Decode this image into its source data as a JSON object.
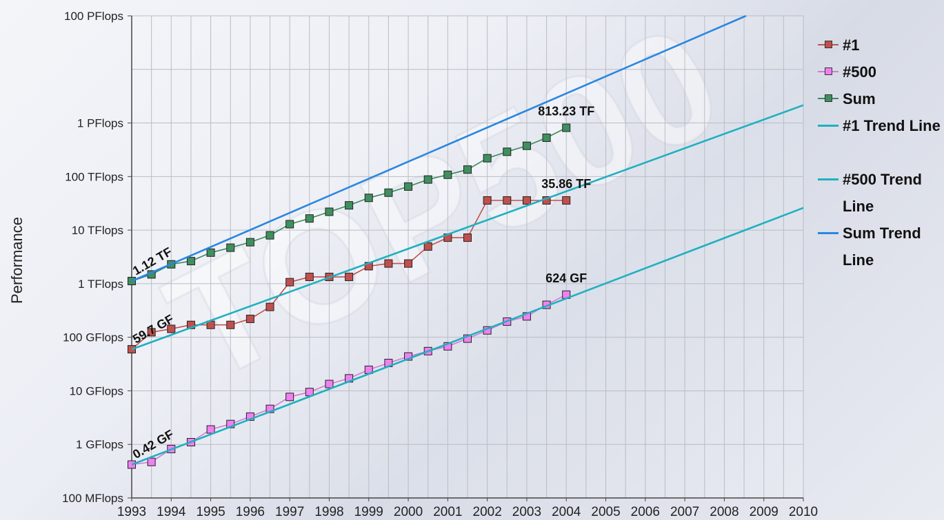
{
  "chart_data": {
    "type": "line",
    "ylabel": "Performance",
    "y_scale": "log",
    "y_ticks": [
      {
        "value": 0.1,
        "label": "100 MFlops"
      },
      {
        "value": 1,
        "label": "1 GFlops"
      },
      {
        "value": 10,
        "label": "10 GFlops"
      },
      {
        "value": 100,
        "label": "100 GFlops"
      },
      {
        "value": 1000,
        "label": "1 TFlops"
      },
      {
        "value": 10000,
        "label": "10 TFlops"
      },
      {
        "value": 100000,
        "label": "100 TFlops"
      },
      {
        "value": 1000000,
        "label": "1 PFlops"
      },
      {
        "value": 100000000,
        "label": "100 PFlops"
      }
    ],
    "x_ticks": [
      "1993",
      "1994",
      "1995",
      "1996",
      "1997",
      "1998",
      "1999",
      "2000",
      "2001",
      "2002",
      "2003",
      "2004",
      "2005",
      "2006",
      "2007",
      "2008",
      "2009",
      "2010"
    ],
    "xlim": [
      1993,
      2010
    ],
    "ylim_gflops": [
      0.1,
      100000000
    ],
    "legend_position": "right",
    "series": [
      {
        "name": "#1",
        "color": "#c0504d",
        "marker_fill": "#c0504d",
        "x": [
          1993.0,
          1993.5,
          1994.0,
          1994.5,
          1995.0,
          1995.5,
          1996.0,
          1996.5,
          1997.0,
          1997.5,
          1998.0,
          1998.5,
          1999.0,
          1999.5,
          2000.0,
          2000.5,
          2001.0,
          2001.5,
          2002.0,
          2002.5,
          2003.0,
          2003.5,
          2004.0
        ],
        "y": [
          59.7,
          124,
          143.4,
          170,
          170,
          170,
          220.4,
          368.2,
          1068,
          1338,
          1338,
          1338,
          2121,
          2379,
          2379,
          4938,
          7226,
          7226,
          35860,
          35860,
          35860,
          35860,
          35860
        ]
      },
      {
        "name": "#500",
        "color": "#d27bd2",
        "marker_fill": "#f080f0",
        "x": [
          1993.0,
          1993.5,
          1994.0,
          1994.5,
          1995.0,
          1995.5,
          1996.0,
          1996.5,
          1997.0,
          1997.5,
          1998.0,
          1998.5,
          1999.0,
          1999.5,
          2000.0,
          2000.5,
          2001.0,
          2001.5,
          2002.0,
          2002.5,
          2003.0,
          2003.5,
          2004.0
        ],
        "y": [
          0.42,
          0.47,
          0.82,
          1.1,
          1.9,
          2.4,
          3.3,
          4.6,
          7.7,
          9.5,
          13.4,
          17.1,
          24.7,
          33.1,
          43.8,
          55.1,
          67.8,
          94.3,
          134.3,
          196,
          245.1,
          403.4,
          624
        ]
      },
      {
        "name": "Sum",
        "color": "#3a8a5c",
        "marker_fill": "#3f8f5f",
        "x": [
          1993.0,
          1993.5,
          1994.0,
          1994.5,
          1995.0,
          1995.5,
          1996.0,
          1996.5,
          1997.0,
          1997.5,
          1998.0,
          1998.5,
          1999.0,
          1999.5,
          2000.0,
          2000.5,
          2001.0,
          2001.5,
          2002.0,
          2002.5,
          2003.0,
          2003.5,
          2004.0
        ],
        "y": [
          1120,
          1490,
          2300,
          2640,
          3800,
          4700,
          5950,
          8000,
          12900,
          16500,
          22000,
          29000,
          40000,
          50000,
          65000,
          88000,
          108000,
          135000,
          220000,
          290000,
          375000,
          530000,
          813230
        ]
      },
      {
        "name": "#1 Trend Line",
        "color": "#1fb0c0",
        "x": [
          1993,
          2010
        ],
        "y": [
          59.7,
          2150000
        ]
      },
      {
        "name": "#500 Trend Line",
        "color": "#1fb0c0",
        "x": [
          1993,
          2010
        ],
        "y": [
          0.42,
          26000
        ]
      },
      {
        "name": "Sum Trend Line",
        "color": "#2a86e0",
        "x": [
          1993,
          2008.55
        ],
        "y": [
          1120,
          100000000
        ]
      }
    ],
    "annotations": [
      {
        "text": "1.12 TF",
        "x": 1993,
        "y": 1120,
        "rotated": true
      },
      {
        "text": "59.7 GF",
        "x": 1993,
        "y": 59.7,
        "rotated": true
      },
      {
        "text": "0.42 GF",
        "x": 1993,
        "y": 0.42,
        "rotated": true
      },
      {
        "text": "813.23 TF",
        "x": 2004,
        "y": 813230,
        "rotated": false
      },
      {
        "text": "35.86 TF",
        "x": 2004,
        "y": 35860,
        "rotated": false
      },
      {
        "text": "624 GF",
        "x": 2004,
        "y": 624,
        "rotated": false
      }
    ]
  },
  "watermark": "TOP500",
  "legend": {
    "items": [
      {
        "label": "#1",
        "color": "#c0504d",
        "marker": "#c0504d"
      },
      {
        "label": "#500",
        "color": "#d27bd2",
        "marker": "#f080f0"
      },
      {
        "label": "Sum",
        "color": "#3a8a5c",
        "marker": "#3f8f5f"
      },
      {
        "label": "#1 Trend Line",
        "color": "#1fb0c0"
      },
      {
        "label": "#500 Trend Line",
        "color": "#1fb0c0"
      },
      {
        "label": "Sum Trend Line",
        "color": "#2a86e0"
      }
    ]
  }
}
